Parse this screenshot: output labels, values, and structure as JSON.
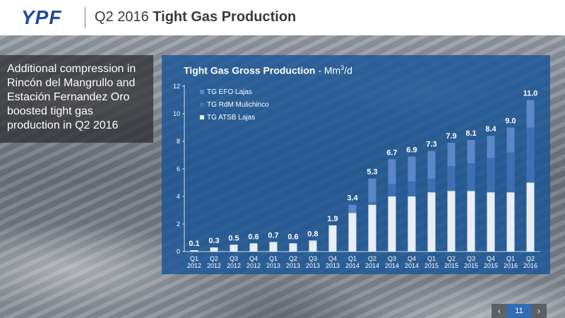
{
  "header": {
    "logo": "YPF",
    "title_prefix": "Q2 2016 ",
    "title_bold": "Tight Gas Production"
  },
  "callout": {
    "text": "Additional compression in Rincón del Mangrullo and Estación Fernandez Oro boosted tight gas production in Q2 2016"
  },
  "chart_title": {
    "bold": "Tight Gas Gross Production",
    "rest": " - Mm",
    "sup": "3",
    "tail": "/d"
  },
  "pager": {
    "prev": "‹",
    "page": "11",
    "next": "›"
  },
  "colors": {
    "efo": "#5b87c6",
    "rdm": "#3f6fb2",
    "atsb": "#e9eef6",
    "panel": "#1955a0"
  },
  "chart_data": {
    "type": "bar",
    "stacked": true,
    "title": "Tight Gas Gross Production - Mm3/d",
    "categories": [
      [
        "Q1",
        "2012"
      ],
      [
        "Q2",
        "2012"
      ],
      [
        "Q3",
        "2012"
      ],
      [
        "Q4",
        "2012"
      ],
      [
        "Q1",
        "2013"
      ],
      [
        "Q2",
        "2013"
      ],
      [
        "Q3",
        "2013"
      ],
      [
        "Q4",
        "2013"
      ],
      [
        "Q1",
        "2014"
      ],
      [
        "Q2",
        "2014"
      ],
      [
        "Q3",
        "2014"
      ],
      [
        "Q4",
        "2014"
      ],
      [
        "Q1",
        "2015"
      ],
      [
        "Q2",
        "2015"
      ],
      [
        "Q3",
        "2015"
      ],
      [
        "Q4",
        "2015"
      ],
      [
        "Q1",
        "2016"
      ],
      [
        "Q2",
        "2016"
      ]
    ],
    "totals": [
      "0.1",
      "0.3",
      "0.5",
      "0.6",
      "0.7",
      "0.6",
      "0.8",
      "1.9",
      "3.4",
      "5.3",
      "6.7",
      "6.9",
      "7.3",
      "7.9",
      "8.1",
      "8.4",
      "9.0",
      "11.0"
    ],
    "series": [
      {
        "name": "TG ATSB Lajas",
        "key": "atsb",
        "values": [
          0.1,
          0.3,
          0.5,
          0.6,
          0.7,
          0.6,
          0.8,
          1.9,
          2.8,
          3.4,
          4.0,
          4.0,
          4.3,
          4.4,
          4.4,
          4.3,
          4.3,
          5.0
        ]
      },
      {
        "name": "TG RdM Mulichinco",
        "key": "rdm",
        "values": [
          0,
          0,
          0,
          0,
          0,
          0,
          0,
          0,
          0,
          0.2,
          0.9,
          1.1,
          1.0,
          1.8,
          2.0,
          2.5,
          2.9,
          4.0
        ]
      },
      {
        "name": "TG EFO Lajas",
        "key": "efo",
        "values": [
          0,
          0,
          0,
          0,
          0,
          0,
          0,
          0,
          0.6,
          1.7,
          1.8,
          1.8,
          2.0,
          1.7,
          1.7,
          1.6,
          1.8,
          2.0
        ]
      }
    ],
    "legend_order": [
      "efo",
      "rdm",
      "atsb"
    ],
    "ylim": [
      0,
      12
    ],
    "yticks": [
      0,
      2,
      4,
      6,
      8,
      10,
      12
    ],
    "legend_position": "top-left"
  }
}
